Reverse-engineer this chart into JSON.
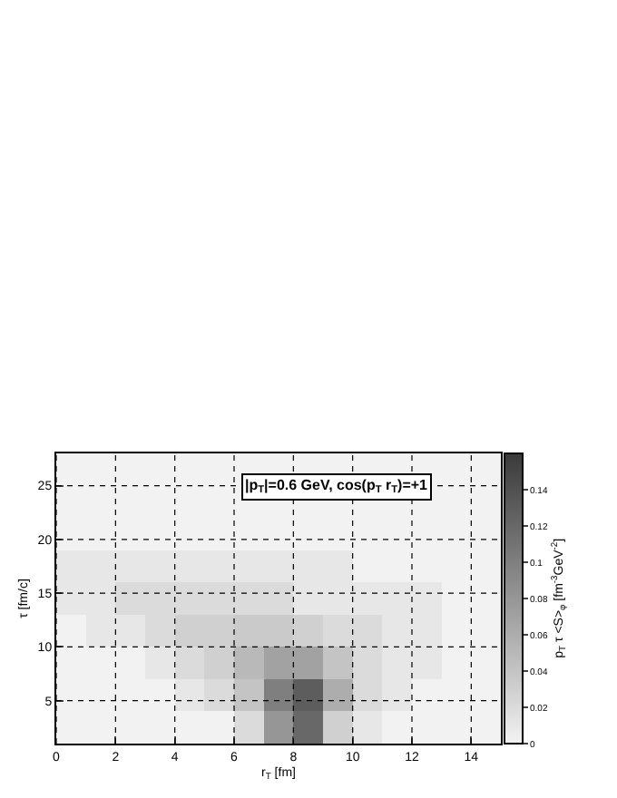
{
  "chart_data": {
    "type": "heatmap",
    "xlabel": "r$_{T}$ [fm]",
    "ylabel": "τ [fm/c]",
    "clabel": "p$_{T}$ τ <S>$_{φ}$ [fm$^{-3}$GeV$^{-2}$]",
    "annotations": [
      "|p$_{T}$|=0.6 GeV, cos(p$_{T}$ r$_{T}$)=+1"
    ],
    "xlim": [
      0,
      15
    ],
    "ylim": [
      1,
      28
    ],
    "xticks": [
      0,
      2,
      4,
      6,
      8,
      10,
      12,
      14
    ],
    "yticks": [
      5,
      10,
      15,
      20,
      25
    ],
    "clim": [
      0,
      0.16
    ],
    "cticks": [
      0,
      0.02,
      0.04,
      0.06,
      0.08,
      0.1,
      0.12,
      0.14
    ],
    "grid": true,
    "cells": [
      [
        0,
        0,
        0,
        0,
        0,
        0,
        0,
        0,
        0,
        0,
        0,
        0,
        0,
        0,
        0
      ],
      [
        0,
        0,
        0,
        0,
        0,
        0,
        0,
        0,
        0,
        0,
        0,
        0,
        0,
        0,
        0
      ],
      [
        0,
        0,
        0,
        0,
        0,
        0,
        0,
        0,
        0,
        0,
        0,
        0,
        0,
        0,
        0
      ],
      [
        0.01,
        0.01,
        0.01,
        0.01,
        0.01,
        0.01,
        0.01,
        0.01,
        0.01,
        0.01,
        0,
        0,
        0,
        0,
        0
      ],
      [
        0.01,
        0.01,
        0.02,
        0.02,
        0.02,
        0.02,
        0.02,
        0.02,
        0.01,
        0.01,
        0.01,
        0.01,
        0.01,
        0,
        0
      ],
      [
        0,
        0.01,
        0.01,
        0.02,
        0.03,
        0.03,
        0.035,
        0.035,
        0.03,
        0.02,
        0.02,
        0.01,
        0.01,
        0,
        0
      ],
      [
        0,
        0,
        0,
        0.01,
        0.02,
        0.03,
        0.05,
        0.07,
        0.07,
        0.04,
        0.02,
        0.01,
        0.01,
        0,
        0
      ],
      [
        0,
        0,
        0,
        0,
        0.01,
        0.02,
        0.04,
        0.1,
        0.13,
        0.06,
        0.02,
        0.01,
        0,
        0,
        0
      ],
      [
        0,
        0,
        0,
        0,
        0,
        0,
        0.02,
        0.08,
        0.12,
        0.03,
        0.01,
        0,
        0,
        0,
        0
      ]
    ]
  }
}
